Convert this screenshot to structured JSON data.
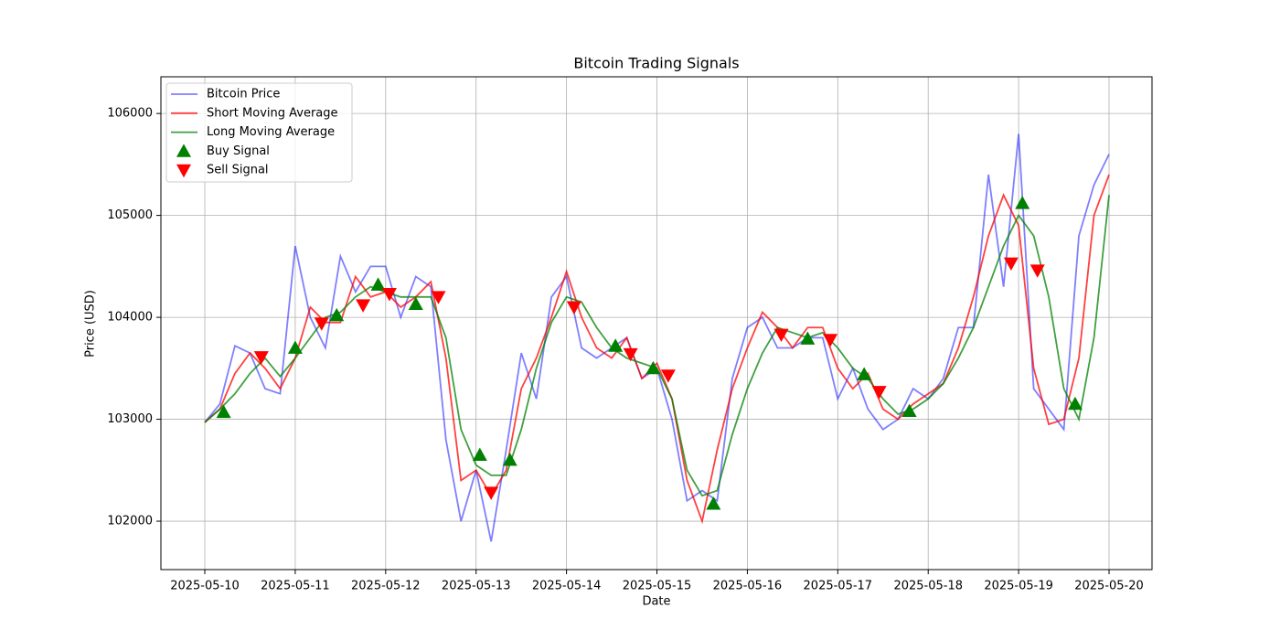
{
  "chart_data": {
    "type": "line",
    "title": "Bitcoin Trading Signals",
    "xlabel": "Date",
    "ylabel": "Price (USD)",
    "x": [
      "2025-05-10T00:00",
      "2025-05-10T04:00",
      "2025-05-10T08:00",
      "2025-05-10T12:00",
      "2025-05-10T16:00",
      "2025-05-10T20:00",
      "2025-05-11T00:00",
      "2025-05-11T04:00",
      "2025-05-11T08:00",
      "2025-05-11T12:00",
      "2025-05-11T16:00",
      "2025-05-11T20:00",
      "2025-05-12T00:00",
      "2025-05-12T04:00",
      "2025-05-12T08:00",
      "2025-05-12T12:00",
      "2025-05-12T16:00",
      "2025-05-12T20:00",
      "2025-05-13T00:00",
      "2025-05-13T04:00",
      "2025-05-13T08:00",
      "2025-05-13T12:00",
      "2025-05-13T16:00",
      "2025-05-13T20:00",
      "2025-05-14T00:00",
      "2025-05-14T04:00",
      "2025-05-14T08:00",
      "2025-05-14T12:00",
      "2025-05-14T16:00",
      "2025-05-14T20:00",
      "2025-05-15T00:00",
      "2025-05-15T04:00",
      "2025-05-15T08:00",
      "2025-05-15T12:00",
      "2025-05-15T16:00",
      "2025-05-15T20:00",
      "2025-05-16T00:00",
      "2025-05-16T04:00",
      "2025-05-16T08:00",
      "2025-05-16T12:00",
      "2025-05-16T16:00",
      "2025-05-16T20:00",
      "2025-05-17T00:00",
      "2025-05-17T04:00",
      "2025-05-17T08:00",
      "2025-05-17T12:00",
      "2025-05-17T16:00",
      "2025-05-17T20:00",
      "2025-05-18T00:00",
      "2025-05-18T04:00",
      "2025-05-18T08:00",
      "2025-05-18T12:00",
      "2025-05-18T16:00",
      "2025-05-18T20:00",
      "2025-05-19T00:00",
      "2025-05-19T04:00",
      "2025-05-19T08:00",
      "2025-05-19T12:00",
      "2025-05-19T16:00",
      "2025-05-19T20:00",
      "2025-05-20T00:00"
    ],
    "series": [
      {
        "name": "Bitcoin Price",
        "color": "blue",
        "alpha": 0.5,
        "values": [
          102970,
          103150,
          103720,
          103650,
          103300,
          103250,
          104700,
          104000,
          103700,
          104600,
          104250,
          104500,
          104500,
          104000,
          104400,
          104300,
          102800,
          102000,
          102500,
          101800,
          102700,
          103650,
          103200,
          104200,
          104400,
          103700,
          103600,
          103700,
          103800,
          103400,
          103500,
          103000,
          102200,
          102300,
          102200,
          103400,
          103900,
          104000,
          103700,
          103700,
          103800,
          103800,
          103200,
          103500,
          103100,
          102900,
          103000,
          103300,
          103200,
          103400,
          103900,
          103900,
          105400,
          104300,
          105800,
          103300,
          103100,
          102900,
          104800,
          105300,
          105600
        ]
      },
      {
        "name": "Short Moving Average",
        "color": "red",
        "alpha": 0.75,
        "values": [
          102970,
          103100,
          103450,
          103650,
          103500,
          103300,
          103600,
          104100,
          103950,
          103950,
          104400,
          104200,
          104250,
          104100,
          104200,
          104350,
          103600,
          102400,
          102500,
          102250,
          102500,
          103300,
          103600,
          104000,
          104450,
          104000,
          103700,
          103600,
          103800,
          103400,
          103550,
          103200,
          102400,
          102000,
          102700,
          103300,
          103700,
          104050,
          103900,
          103700,
          103900,
          103900,
          103500,
          103300,
          103450,
          103100,
          103000,
          103150,
          103250,
          103350,
          103700,
          104200,
          104800,
          105200,
          104900,
          103500,
          102950,
          103000,
          103600,
          105000,
          105400
        ]
      },
      {
        "name": "Long Moving Average",
        "color": "green",
        "alpha": 0.75,
        "values": [
          102970,
          103100,
          103250,
          103450,
          103600,
          103420,
          103600,
          103800,
          104000,
          104050,
          104200,
          104300,
          104250,
          104200,
          104200,
          104200,
          103800,
          102900,
          102550,
          102450,
          102450,
          102900,
          103500,
          103950,
          104200,
          104150,
          103900,
          103700,
          103600,
          103550,
          103500,
          103200,
          102500,
          102250,
          102300,
          102850,
          103300,
          103650,
          103900,
          103850,
          103800,
          103850,
          103700,
          103500,
          103400,
          103200,
          103050,
          103100,
          103200,
          103350,
          103600,
          103900,
          104300,
          104700,
          105000,
          104800,
          104200,
          103300,
          103000,
          103800,
          105200
        ]
      },
      {
        "name": "Buy Signal",
        "type": "scatter",
        "marker": "triangle-up",
        "color": "green",
        "alpha": 1,
        "x": [
          "2025-05-10T05:00",
          "2025-05-11T00:00",
          "2025-05-11T11:00",
          "2025-05-11T22:00",
          "2025-05-12T08:00",
          "2025-05-13T01:00",
          "2025-05-13T09:00",
          "2025-05-14T13:00",
          "2025-05-14T23:00",
          "2025-05-15T15:00",
          "2025-05-16T16:00",
          "2025-05-17T07:00",
          "2025-05-17T19:00",
          "2025-05-19T01:00",
          "2025-05-19T15:00"
        ],
        "values": [
          103070,
          103700,
          104020,
          104320,
          104130,
          102650,
          102600,
          103720,
          103500,
          102170,
          103790,
          103440,
          103080,
          105120,
          103150
        ]
      },
      {
        "name": "Sell Signal",
        "type": "scatter",
        "marker": "triangle-down",
        "color": "red",
        "alpha": 1,
        "x": [
          "2025-05-10T15:00",
          "2025-05-11T07:00",
          "2025-05-11T18:00",
          "2025-05-12T01:00",
          "2025-05-12T14:00",
          "2025-05-13T04:00",
          "2025-05-14T02:00",
          "2025-05-14T17:00",
          "2025-05-15T03:00",
          "2025-05-16T09:00",
          "2025-05-16T22:00",
          "2025-05-17T11:00",
          "2025-05-18T22:00",
          "2025-05-19T05:00"
        ],
        "values": [
          103610,
          103940,
          104120,
          104230,
          104200,
          102280,
          104100,
          103640,
          103430,
          103830,
          103780,
          103270,
          104530,
          104460
        ]
      }
    ],
    "xlim": [
      "2025-05-09T12:21",
      "2025-05-20T11:24"
    ],
    "xticks": [
      "2025-05-10",
      "2025-05-11",
      "2025-05-12",
      "2025-05-13",
      "2025-05-14",
      "2025-05-15",
      "2025-05-16",
      "2025-05-17",
      "2025-05-18",
      "2025-05-19",
      "2025-05-20"
    ],
    "ylim": [
      101525,
      106360
    ],
    "yticks": [
      102000,
      103000,
      104000,
      105000,
      106000
    ],
    "grid": true,
    "legend": "upper left"
  }
}
